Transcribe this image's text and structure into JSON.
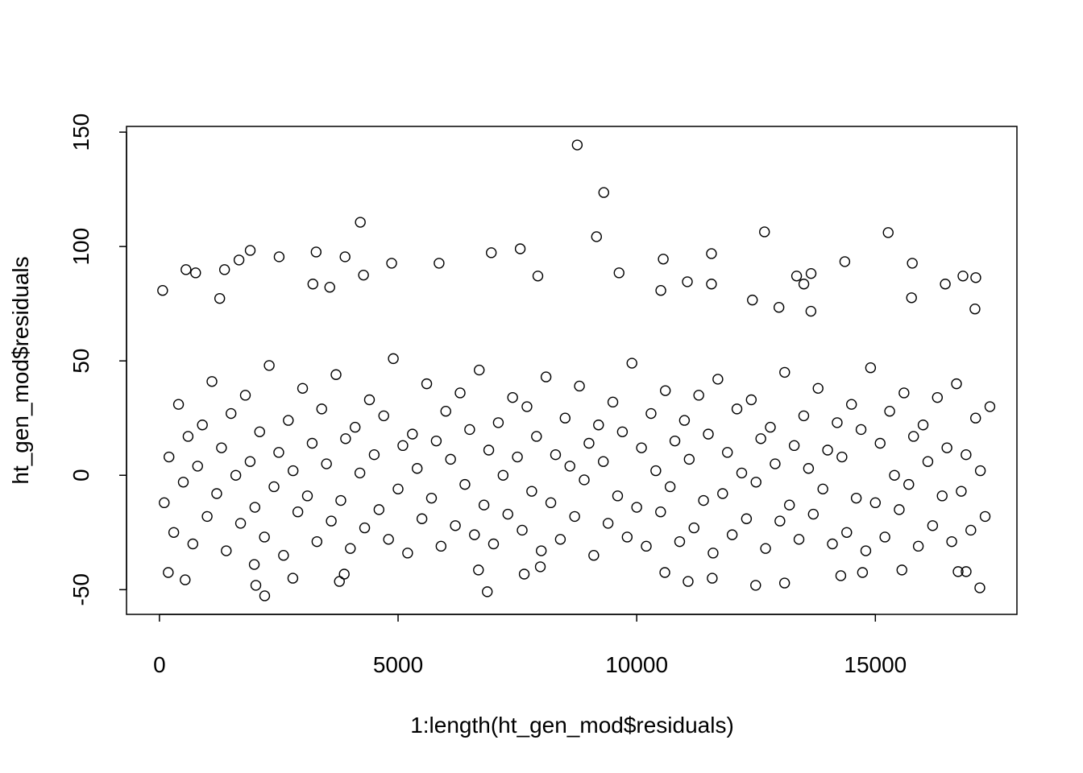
{
  "chart_data": {
    "type": "scatter",
    "xlabel": "1:length(ht_gen_mod$residuals)",
    "ylabel": "ht_gen_mod$residuals",
    "xlim": [
      -690,
      17966
    ],
    "ylim": [
      -60.8,
      152.5
    ],
    "xticks": [
      0,
      5000,
      10000,
      15000
    ],
    "yticks": [
      -50,
      0,
      50,
      100,
      150
    ],
    "color": "#000000",
    "x": [
      8754,
      9310,
      9158,
      4209,
      12677,
      15269,
      7559,
      1902,
      3283,
      6953,
      11566,
      1667,
      2508,
      3889,
      4865,
      5859,
      10556,
      14360,
      15774,
      556,
      758,
      1364,
      9630,
      13653,
      13350,
      16835,
      17104,
      7929,
      4276,
      67,
      3215,
      3569,
      13502,
      16465,
      11566,
      11061,
      10505,
      15758,
      12424,
      1263,
      17087,
      12980,
      13650,
      2205,
      6869,
      17189,
      12492,
      13098,
      539,
      2020,
      2795,
      11582,
      3771,
      11077,
      14276,
      14731,
      15556,
      10589,
      7643,
      185,
      16902,
      16734,
      6684,
      1987,
      3872,
      7980,
      100,
      200,
      300,
      400,
      500,
      600,
      700,
      800,
      900,
      1000,
      1100,
      1200,
      1300,
      1400,
      1500,
      1600,
      1700,
      1800,
      1900,
      2000,
      2100,
      2200,
      2300,
      2400,
      2500,
      2600,
      2700,
      2800,
      2900,
      3000,
      3100,
      3200,
      3300,
      3400,
      3500,
      3600,
      3700,
      3800,
      3900,
      4000,
      4100,
      4200,
      4300,
      4400,
      4500,
      4600,
      4700,
      4800,
      4900,
      5000,
      5100,
      5200,
      5300,
      5400,
      5500,
      5600,
      5700,
      5800,
      5900,
      6000,
      6100,
      6200,
      6300,
      6400,
      6500,
      6600,
      6700,
      6800,
      6900,
      7000,
      7100,
      7200,
      7300,
      7400,
      7500,
      7600,
      7700,
      7800,
      7900,
      8000,
      8100,
      8200,
      8300,
      8400,
      8500,
      8600,
      8700,
      8800,
      8900,
      9000,
      9100,
      9200,
      9300,
      9400,
      9500,
      9600,
      9700,
      9800,
      9900,
      10000,
      10100,
      10200,
      10300,
      10400,
      10500,
      10600,
      10700,
      10800,
      10900,
      11000,
      11100,
      11200,
      11300,
      11400,
      11500,
      11600,
      11700,
      11800,
      11900,
      12000,
      12100,
      12200,
      12300,
      12400,
      12500,
      12600,
      12700,
      12800,
      12900,
      13000,
      13100,
      13200,
      13300,
      13400,
      13500,
      13600,
      13700,
      13800,
      13900,
      14000,
      14100,
      14200,
      14300,
      14400,
      14500,
      14600,
      14700,
      14800,
      14900,
      15000,
      15100,
      15200,
      15300,
      15400,
      15500,
      15600,
      15700,
      15800,
      15900,
      16000,
      16100,
      16200,
      16300,
      16400,
      16500,
      16600,
      16700,
      16800,
      16900,
      17000,
      17100,
      17200,
      17300,
      17400
    ],
    "values": [
      144.4,
      123.6,
      104.3,
      110.6,
      106.4,
      106.1,
      99.0,
      98.3,
      97.6,
      97.3,
      96.9,
      94.1,
      95.5,
      95.5,
      92.7,
      92.7,
      94.5,
      93.4,
      92.7,
      89.9,
      88.5,
      89.9,
      88.5,
      88.2,
      87.1,
      87.1,
      86.4,
      87.1,
      87.5,
      80.8,
      83.6,
      82.2,
      83.6,
      83.6,
      83.6,
      84.6,
      80.8,
      77.6,
      76.6,
      77.3,
      72.7,
      73.4,
      71.7,
      -52.7,
      -50.9,
      -49.2,
      -48.1,
      -47.1,
      -45.7,
      -48.1,
      -45.0,
      -45.0,
      -46.4,
      -46.4,
      -43.9,
      -42.5,
      -41.4,
      -42.5,
      -43.2,
      -42.5,
      -42.1,
      -42.1,
      -41.4,
      -39.0,
      -43.2,
      -40.0,
      -12,
      8,
      -25,
      31,
      -3,
      17,
      -30,
      4,
      22,
      -18,
      41,
      -8,
      12,
      -33,
      27,
      0,
      -21,
      35,
      6,
      -14,
      19,
      -27,
      48,
      -5,
      10,
      -35,
      24,
      2,
      -16,
      38,
      -9,
      14,
      -29,
      29,
      5,
      -20,
      44,
      -11,
      16,
      -32,
      21,
      1,
      -23,
      33,
      9,
      -15,
      26,
      -28,
      51,
      -6,
      13,
      -34,
      18,
      3,
      -19,
      40,
      -10,
      15,
      -31,
      28,
      7,
      -22,
      36,
      -4,
      20,
      -26,
      46,
      -13,
      11,
      -30,
      23,
      0,
      -17,
      34,
      8,
      -24,
      30,
      -7,
      17,
      -33,
      43,
      -12,
      9,
      -28,
      25,
      4,
      -18,
      39,
      -2,
      14,
      -35,
      22,
      6,
      -21,
      32,
      -9,
      19,
      -27,
      49,
      -14,
      12,
      -31,
      27,
      2,
      -16,
      37,
      -5,
      15,
      -29,
      24,
      7,
      -23,
      35,
      -11,
      18,
      -34,
      42,
      -8,
      10,
      -26,
      29,
      1,
      -19,
      33,
      -3,
      16,
      -32,
      21,
      5,
      -20,
      45,
      -13,
      13,
      -28,
      26,
      3,
      -17,
      38,
      -6,
      11,
      -30,
      23,
      8,
      -25,
      31,
      -10,
      20,
      -33,
      47,
      -12,
      14,
      -27,
      28,
      0,
      -15,
      36,
      -4,
      17,
      -31,
      22,
      6,
      -22,
      34,
      -9,
      12,
      -29,
      40,
      -7,
      9,
      -24,
      25,
      2,
      -18,
      30
    ]
  }
}
